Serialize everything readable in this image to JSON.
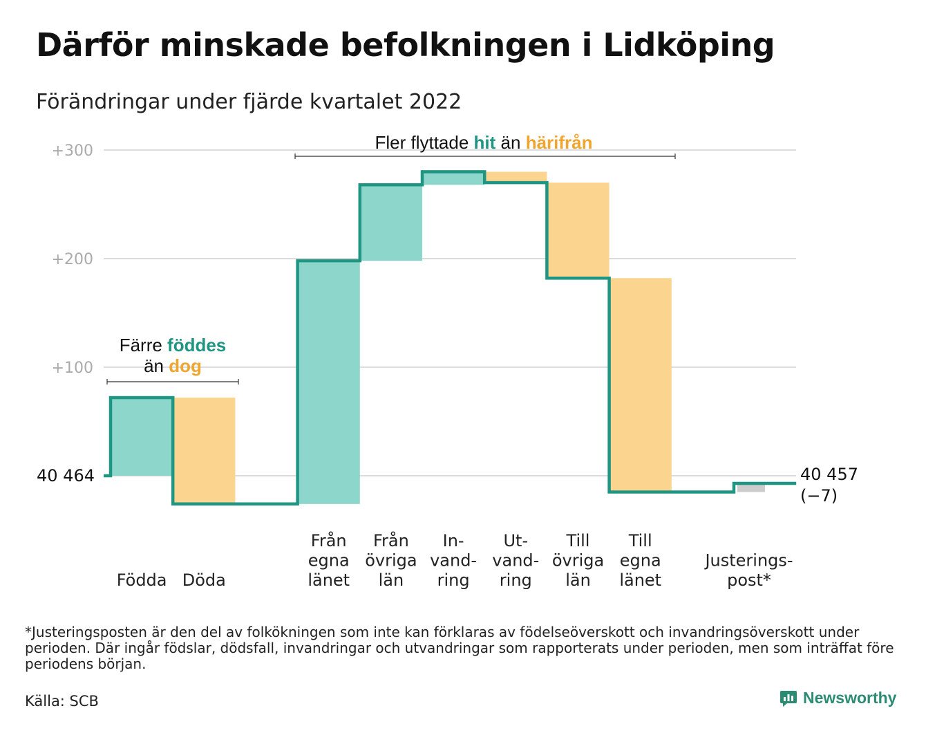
{
  "header": {
    "title": "Därför minskade befolkningen i Lidköping",
    "subtitle": "Förändringar under fjärde kvartalet 2022"
  },
  "chart_data": {
    "type": "waterfall",
    "start": {
      "label": "40 464",
      "value": 40464
    },
    "end": {
      "label": "40 457",
      "change_label": "(−7)",
      "value": 40457
    },
    "y_offset_ticks": [
      {
        "value": 0,
        "label": ""
      },
      {
        "value": 100,
        "label": "+100"
      },
      {
        "value": 200,
        "label": "+200"
      },
      {
        "value": 300,
        "label": "+300"
      }
    ],
    "ylim": [
      -30,
      310
    ],
    "grid": true,
    "steps": [
      {
        "lines": [
          "Födda"
        ],
        "change": 72,
        "kind": "inflow"
      },
      {
        "lines": [
          "Döda"
        ],
        "change": -98,
        "kind": "outflow"
      },
      {
        "lines": [],
        "change": 0,
        "kind": "gap"
      },
      {
        "lines": [
          "Från",
          "egna",
          "länet"
        ],
        "change": 224,
        "kind": "inflow"
      },
      {
        "lines": [
          "Från",
          "övriga",
          "län"
        ],
        "change": 70,
        "kind": "inflow"
      },
      {
        "lines": [
          "In-",
          "vand-",
          "ring"
        ],
        "change": 12,
        "kind": "inflow"
      },
      {
        "lines": [
          "Ut-",
          "vand-",
          "ring"
        ],
        "change": -10,
        "kind": "outflow"
      },
      {
        "lines": [
          "Till",
          "övriga",
          "län"
        ],
        "change": -88,
        "kind": "outflow"
      },
      {
        "lines": [
          "Till",
          "egna",
          "länet"
        ],
        "change": -197,
        "kind": "outflow"
      },
      {
        "lines": [],
        "change": 0,
        "kind": "gap"
      },
      {
        "lines": [
          "Justerings-",
          "post*"
        ],
        "change": 8,
        "kind": "adjustment"
      }
    ],
    "annotations": [
      {
        "id": "births",
        "line1": "Färre",
        "accent1": "föddes",
        "line2": "än",
        "accent2": "dog"
      },
      {
        "id": "moves",
        "line1": "Fler flyttade",
        "accent1": "hit",
        "line2": "än",
        "accent2": "härifrån"
      }
    ],
    "colors": {
      "inflow": "#8dd6cb",
      "outflow": "#fbd58f",
      "adjustment": "#cccccc",
      "line": "#1f9683",
      "accent_in": "#1f9683",
      "accent_out": "#f0a62e",
      "grid": "#dcdcdc",
      "tick": "#aaaaaa"
    }
  },
  "footer": {
    "footnote": "*Justeringsposten är den del av folkökningen som inte kan förklaras av födelseöverskott och invandringsöverskott under perioden. Där ingår födslar, dödsfall, invandringar och utvandringar som rapporterats under perioden, men som inträffat före periodens början.",
    "source": "Källa: SCB",
    "brand": "Newsworthy"
  }
}
